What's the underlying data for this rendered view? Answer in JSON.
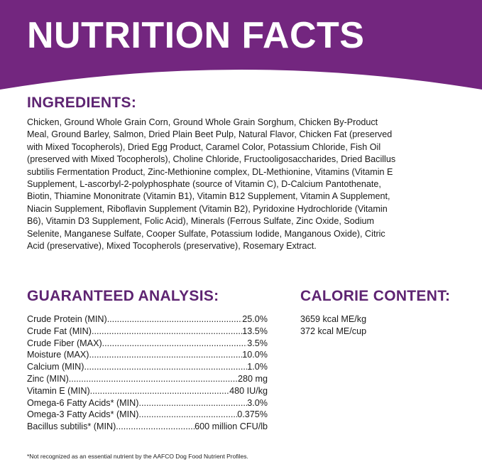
{
  "header": {
    "title": "NUTRITION FACTS",
    "color": "#73267f"
  },
  "ingredients": {
    "heading": "INGREDIENTS:",
    "lines": [
      "Chicken, Ground Whole Grain Corn, Ground Whole Grain Sorghum, Chicken By-Product",
      "Meal, Ground Barley, Salmon, Dried Plain Beet Pulp, Natural Flavor, Chicken Fat (preserved",
      "with Mixed Tocopherols), Dried Egg Product, Caramel Color, Potassium Chloride, Fish Oil",
      "(preserved with Mixed Tocopherols), Choline Chloride, Fructooligosaccharides, Dried Bacillus",
      "subtilis Fermentation Product, Zinc-Methionine complex, DL-Methionine, Vitamins (Vitamin E",
      "Supplement, L-ascorbyl-2-polyphosphate (source of Vitamin C), D-Calcium Pantothenate,",
      "Biotin, Thiamine Mononitrate (Vitamin B1), Vitamin B12 Supplement, Vitamin A Supplement,",
      "Niacin Supplement, Riboflavin Supplement (Vitamin B2), Pyridoxine Hydrochloride (Vitamin",
      "B6), Vitamin D3 Supplement, Folic Acid), Minerals (Ferrous Sulfate, Zinc Oxide, Sodium",
      "Selenite, Manganese Sulfate, Cooper Sulfate, Potassium Iodide, Manganous Oxide), Citric",
      "Acid (preservative), Mixed Tocopherols (preservative), Rosemary Extract."
    ]
  },
  "analysis": {
    "heading": "GUARANTEED ANALYSIS:",
    "rows": [
      {
        "label": "Crude Protein (MIN)",
        "value": "25.0%"
      },
      {
        "label": "Crude Fat (MIN)",
        "value": "13.5%"
      },
      {
        "label": "Crude Fiber (MAX)",
        "value": "3.5%"
      },
      {
        "label": "Moisture (MAX)",
        "value": "10.0%"
      },
      {
        "label": "Calcium (MIN)",
        "value": "1.0%"
      },
      {
        "label": "Zinc (MIN)",
        "value": "280 mg"
      },
      {
        "label": "Vitamin E (MIN)",
        "value": "480 IU/kg"
      },
      {
        "label": "Omega-6 Fatty Acids* (MIN)",
        "value": "3.0%"
      },
      {
        "label": "Omega-3 Fatty Acids* (MIN)",
        "value": "0.375%"
      },
      {
        "label": "Bacillus subtilis* (MIN)",
        "value": "600 million CFU/lb"
      }
    ]
  },
  "calorie": {
    "heading": "CALORIE CONTENT:",
    "lines": [
      "3659 kcal ME/kg",
      "372 kcal ME/cup"
    ]
  },
  "footnote": "*Not recognized as an essential nutrient by the AAFCO Dog Food Nutrient Profiles."
}
